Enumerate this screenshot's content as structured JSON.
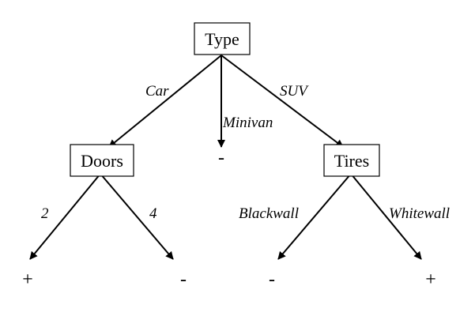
{
  "tree": {
    "nodes": {
      "type": "Type",
      "doors": "Doors",
      "tires": "Tires"
    },
    "edges": {
      "car": "Car",
      "minivan": "Minivan",
      "suv": "SUV",
      "two": "2",
      "four": "4",
      "blackwall": "Blackwall",
      "whitewall": "Whitewall"
    },
    "leaves": {
      "two": "+",
      "four": "-",
      "minivan": "-",
      "blackwall": "-",
      "whitewall": "+"
    }
  }
}
